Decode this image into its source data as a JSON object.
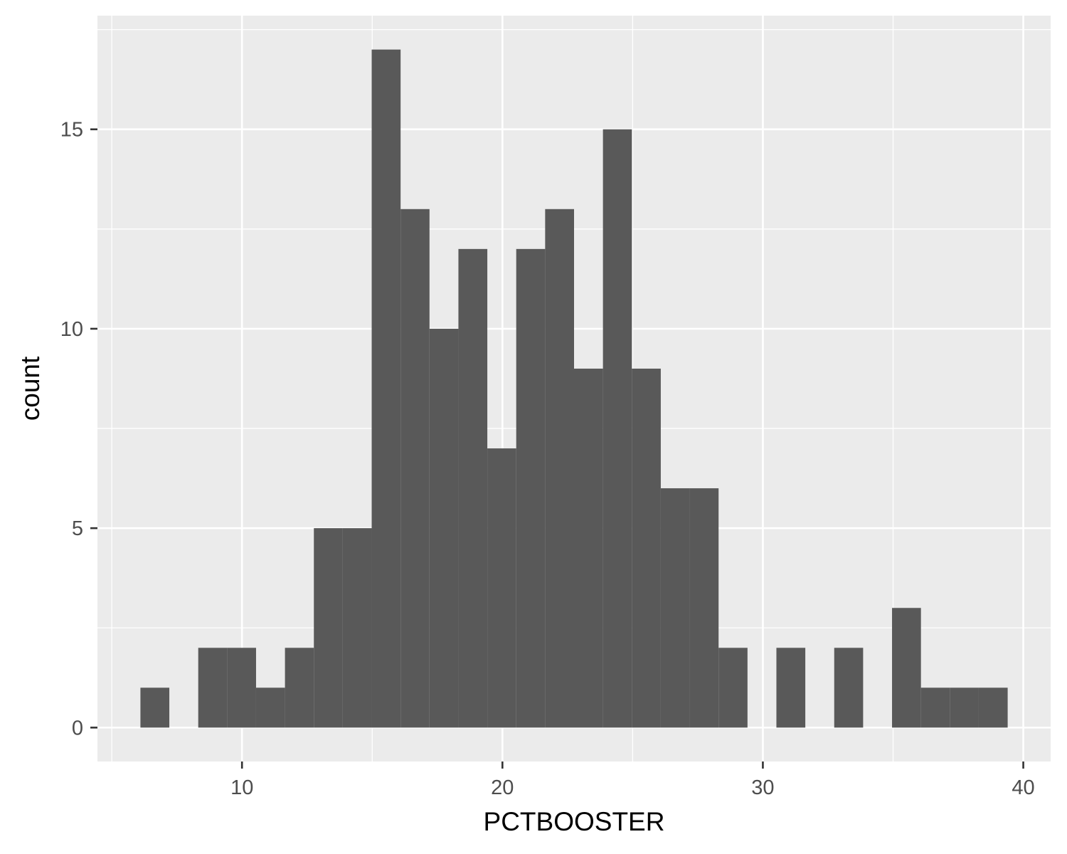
{
  "chart_data": {
    "type": "bar",
    "title": "",
    "xlabel": "PCTBOOSTER",
    "ylabel": "count",
    "bins": [
      {
        "x0": 6.1,
        "x1": 7.21,
        "count": 1
      },
      {
        "x0": 7.21,
        "x1": 8.32,
        "count": 0
      },
      {
        "x0": 8.32,
        "x1": 9.43,
        "count": 2
      },
      {
        "x0": 9.43,
        "x1": 10.54,
        "count": 2
      },
      {
        "x0": 10.54,
        "x1": 11.65,
        "count": 1
      },
      {
        "x0": 11.65,
        "x1": 12.76,
        "count": 2
      },
      {
        "x0": 12.76,
        "x1": 13.87,
        "count": 5
      },
      {
        "x0": 13.87,
        "x1": 14.98,
        "count": 5
      },
      {
        "x0": 14.98,
        "x1": 16.09,
        "count": 17
      },
      {
        "x0": 16.09,
        "x1": 17.2,
        "count": 13
      },
      {
        "x0": 17.2,
        "x1": 18.31,
        "count": 10
      },
      {
        "x0": 18.31,
        "x1": 19.42,
        "count": 12
      },
      {
        "x0": 19.42,
        "x1": 20.53,
        "count": 7
      },
      {
        "x0": 20.53,
        "x1": 21.64,
        "count": 12
      },
      {
        "x0": 21.64,
        "x1": 22.75,
        "count": 13
      },
      {
        "x0": 22.75,
        "x1": 23.86,
        "count": 9
      },
      {
        "x0": 23.86,
        "x1": 24.97,
        "count": 15
      },
      {
        "x0": 24.97,
        "x1": 26.08,
        "count": 9
      },
      {
        "x0": 26.08,
        "x1": 27.19,
        "count": 6
      },
      {
        "x0": 27.19,
        "x1": 28.3,
        "count": 6
      },
      {
        "x0": 28.3,
        "x1": 29.41,
        "count": 2
      },
      {
        "x0": 29.41,
        "x1": 30.52,
        "count": 0
      },
      {
        "x0": 30.52,
        "x1": 31.63,
        "count": 2
      },
      {
        "x0": 31.63,
        "x1": 32.74,
        "count": 0
      },
      {
        "x0": 32.74,
        "x1": 33.85,
        "count": 2
      },
      {
        "x0": 33.85,
        "x1": 34.96,
        "count": 0
      },
      {
        "x0": 34.96,
        "x1": 36.07,
        "count": 3
      },
      {
        "x0": 36.07,
        "x1": 37.18,
        "count": 1
      },
      {
        "x0": 37.18,
        "x1": 38.29,
        "count": 1
      },
      {
        "x0": 38.29,
        "x1": 39.4,
        "count": 1
      }
    ],
    "x_ticks": [
      10,
      20,
      30,
      40
    ],
    "y_ticks": [
      0,
      5,
      10,
      15
    ],
    "xlim": [
      4.45,
      41.05
    ],
    "ylim": [
      -0.85,
      17.85
    ],
    "grid": true,
    "colors": {
      "bar": "#595959",
      "panel": "#ebebeb",
      "grid": "#ffffff"
    }
  }
}
